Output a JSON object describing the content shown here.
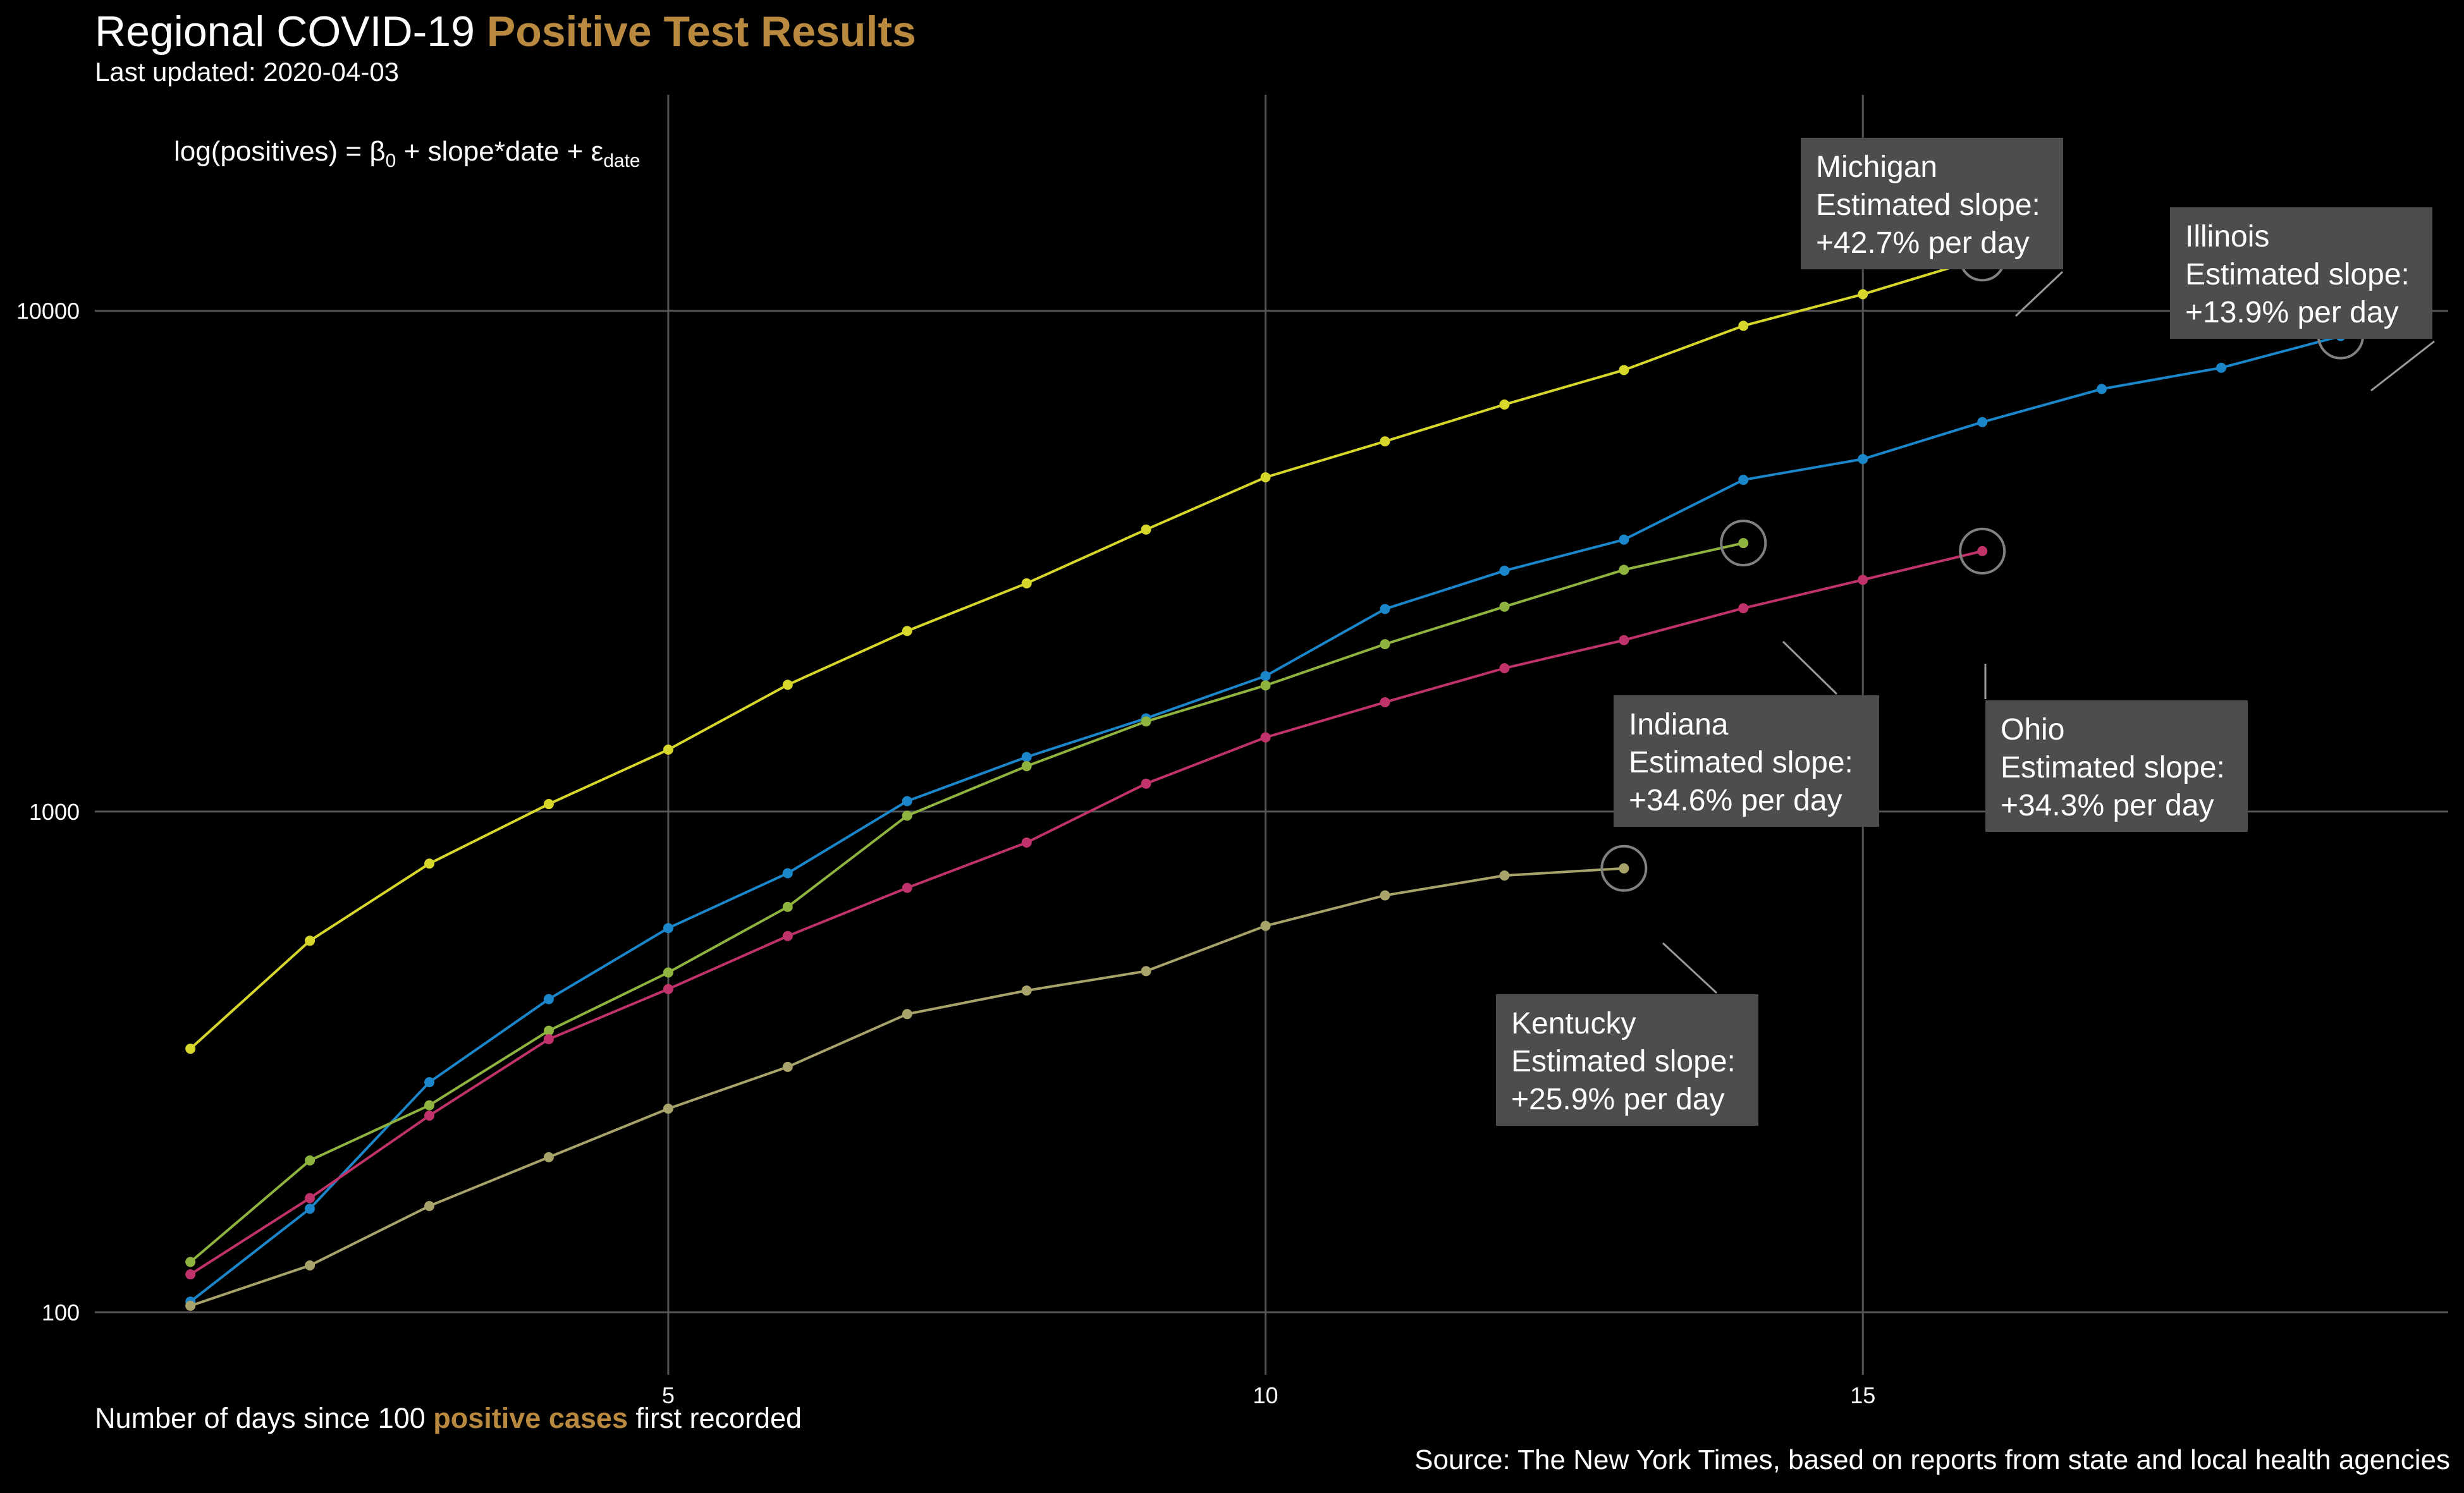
{
  "title": {
    "prefix": "Regional COVID-19 ",
    "accent": "Positive Test Results",
    "accent_color": "#B8893F",
    "subtitle": "Last updated: 2020-04-03"
  },
  "formula": {
    "lhs": "log(positives) = β",
    "beta_sub": "0",
    "mid": " + slope*date + ε",
    "eps_sub": "date"
  },
  "x_caption": {
    "before": "Number of days since 100 ",
    "accent": "positive cases",
    "after": " first recorded"
  },
  "source": "Source: The New York Times, based on reports from state and local health agencies",
  "chart_data": {
    "type": "line",
    "xlabel": "Number of days since 100 positive cases first recorded",
    "ylabel": "",
    "y_scale": "log",
    "xlim": [
      0.2,
      19.9
    ],
    "ylim": [
      75,
      27000
    ],
    "x_ticks": [
      5,
      10,
      15
    ],
    "x_tick_labels": [
      "5",
      "10",
      "15"
    ],
    "y_ticks": [
      100,
      1000,
      10000
    ],
    "y_tick_labels": [
      "100",
      "1000",
      "10000"
    ],
    "grid": true,
    "background": "#000000",
    "grid_color": "#555555",
    "series": [
      {
        "name": "Michigan",
        "color": "#D7D62B",
        "x": [
          1,
          2,
          3,
          4,
          5,
          6,
          7,
          8,
          9,
          10,
          11,
          12,
          13,
          14,
          15,
          16
        ],
        "values": [
          336,
          552,
          787,
          1035,
          1329,
          1791,
          2294,
          2856,
          3657,
          4650,
          5486,
          6498,
          7615,
          9334,
          10791,
          12744
        ],
        "label": [
          "Michigan",
          "Estimated slope:",
          "+42.7% per day"
        ]
      },
      {
        "name": "Illinois",
        "color": "#1B86C9",
        "x": [
          1,
          2,
          3,
          4,
          5,
          6,
          7,
          8,
          9,
          10,
          11,
          12,
          13,
          14,
          15,
          16,
          17,
          18,
          19
        ],
        "values": [
          105,
          161,
          288,
          422,
          585,
          753,
          1049,
          1285,
          1535,
          1865,
          2538,
          3026,
          3491,
          4596,
          5057,
          5994,
          6980,
          7695,
          8904
        ],
        "label": [
          "Illinois",
          "Estimated slope:",
          "+13.9% per day"
        ]
      },
      {
        "name": "Indiana",
        "color": "#8EB33F",
        "x": [
          1,
          2,
          3,
          4,
          5,
          6,
          7,
          8,
          9,
          10,
          11,
          12,
          13,
          14
        ],
        "values": [
          126,
          201,
          259,
          365,
          477,
          645,
          981,
          1232,
          1513,
          1786,
          2159,
          2565,
          3039,
          3437
        ],
        "label": [
          "Indiana",
          "Estimated slope:",
          "+34.6% per day"
        ]
      },
      {
        "name": "Ohio",
        "color": "#C0326A",
        "x": [
          1,
          2,
          3,
          4,
          5,
          6,
          7,
          8,
          9,
          10,
          11,
          12,
          13,
          14,
          15,
          16
        ],
        "values": [
          119,
          169,
          247,
          351,
          442,
          564,
          704,
          867,
          1137,
          1406,
          1653,
          1933,
          2199,
          2547,
          2902,
          3312
        ],
        "label": [
          "Ohio",
          "Estimated slope:",
          "+34.3% per day"
        ]
      },
      {
        "name": "Kentucky",
        "color": "#A8A36A",
        "x": [
          1,
          2,
          3,
          4,
          5,
          6,
          7,
          8,
          9,
          10,
          11,
          12,
          13
        ],
        "values": [
          103,
          124,
          163,
          204,
          255,
          309,
          394,
          439,
          480,
          591,
          680,
          745,
          770
        ],
        "label": [
          "Kentucky",
          "Estimated slope:",
          "+25.9% per day"
        ]
      }
    ]
  }
}
